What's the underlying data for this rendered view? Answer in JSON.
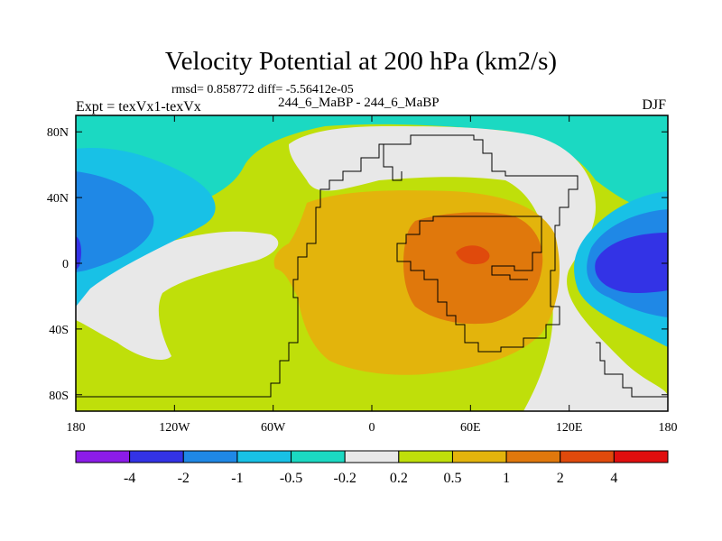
{
  "title": "Velocity Potential at 200 hPa (km2/s)",
  "stats": "rmsd= 0.858772  diff= -5.56412e-05",
  "left_label": "Expt = texVx1-texVx",
  "center_label": "244_6_MaBP - 244_6_MaBP",
  "right_label": "DJF",
  "chart_data": {
    "type": "heatmap",
    "title": "Velocity Potential at 200 hPa (km2/s)",
    "xlabel": "",
    "ylabel": "",
    "x_range": [
      -180,
      180
    ],
    "y_range": [
      -90,
      90
    ],
    "x_ticks": [
      {
        "value": -180,
        "label": "180"
      },
      {
        "value": -120,
        "label": "120W"
      },
      {
        "value": -60,
        "label": "60W"
      },
      {
        "value": 0,
        "label": "0"
      },
      {
        "value": 60,
        "label": "60E"
      },
      {
        "value": 120,
        "label": "120E"
      },
      {
        "value": 180,
        "label": "180"
      }
    ],
    "y_ticks": [
      {
        "value": 80,
        "label": "80N"
      },
      {
        "value": 40,
        "label": "40N"
      },
      {
        "value": 0,
        "label": "0"
      },
      {
        "value": -40,
        "label": "40S"
      },
      {
        "value": -80,
        "label": "80S"
      }
    ],
    "colorbar": {
      "boundaries": [
        "-4",
        "-2",
        "-1",
        "-0.5",
        "-0.2",
        "0.2",
        "0.5",
        "1",
        "2",
        "4"
      ],
      "colors": [
        "#8c1ce8",
        "#3333e6",
        "#1f88e6",
        "#18c1e6",
        "#1bd9c2",
        "#e8e8e8",
        "#bfdf0a",
        "#e3b40c",
        "#e0780c",
        "#e04a0c",
        "#e00e0e"
      ]
    },
    "features": [
      {
        "name": "strong negative center",
        "lon": 155,
        "lat": 0,
        "level": "-4 to -2"
      },
      {
        "name": "west negative center",
        "lon": -178,
        "lat": 12,
        "level": "-2 to -1"
      },
      {
        "name": "positive maximum",
        "lon": 62,
        "lat": 7,
        "level": "2 to 4"
      },
      {
        "name": "positive core",
        "lon": 62,
        "lat": 3,
        "level": "1 to 2"
      },
      {
        "name": "positive broad region",
        "lon": 30,
        "lat": -5,
        "level": "0.5 to 1"
      }
    ]
  }
}
